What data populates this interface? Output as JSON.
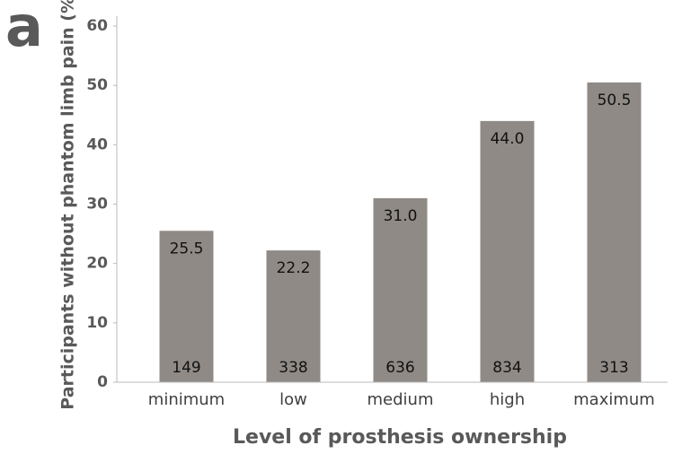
{
  "chart_data": {
    "type": "bar",
    "panel_label": "a",
    "y_label": "Participants without phantom limb pain (%)",
    "x_label": "Level of prosthesis ownership",
    "categories": [
      "minimum",
      "low",
      "medium",
      "high",
      "maximum"
    ],
    "values": [
      25.5,
      22.2,
      31.0,
      44.0,
      50.5
    ],
    "value_labels": [
      "25.5",
      "22.2",
      "31.0",
      "44.0",
      "50.5"
    ],
    "n_labels": [
      149,
      338,
      636,
      834,
      313
    ],
    "color": "#8f8a86",
    "ylim": [
      0,
      60
    ],
    "yticks": [
      0,
      10,
      20,
      30,
      40,
      50,
      60
    ],
    "grid": false
  }
}
